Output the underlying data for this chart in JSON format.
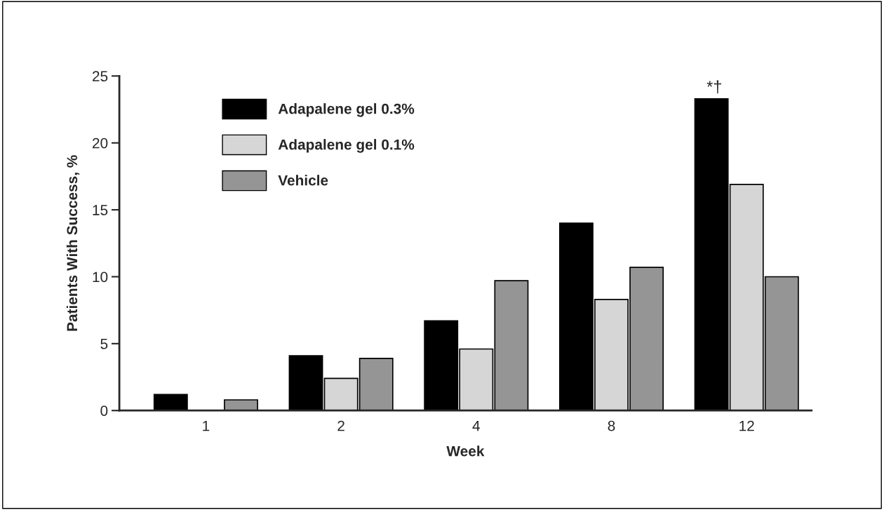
{
  "chart_data": {
    "type": "bar",
    "xlabel": "Week",
    "ylabel": "Patients With Success, %",
    "categories": [
      "1",
      "2",
      "4",
      "8",
      "12"
    ],
    "series": [
      {
        "name": "Adapalene gel 0.3%",
        "color": "#000000",
        "values": [
          1.2,
          4.1,
          6.7,
          14.0,
          23.3
        ]
      },
      {
        "name": "Adapalene gel 0.1%",
        "color": "#d6d6d6",
        "values": [
          0,
          2.4,
          4.6,
          8.3,
          16.9
        ]
      },
      {
        "name": "Vehicle",
        "color": "#959595",
        "values": [
          0.8,
          3.9,
          9.7,
          10.7,
          10.0
        ]
      }
    ],
    "ylim": [
      0,
      25
    ],
    "yticks": [
      0,
      5,
      10,
      15,
      20,
      25
    ],
    "annotations": [
      "*†"
    ],
    "legend": "top left",
    "grid": false
  }
}
